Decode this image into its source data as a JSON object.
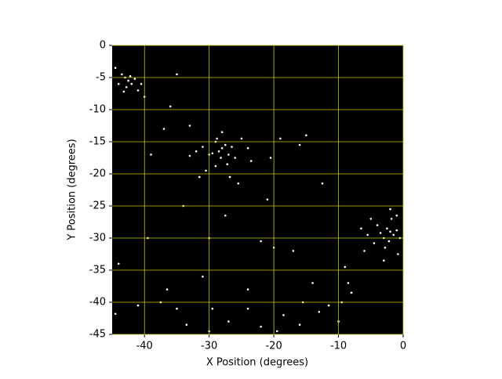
{
  "chart_data": {
    "type": "scatter",
    "x_label": "X Position (degrees)",
    "y_label": "Y Position (degrees)",
    "xlim": [
      -45,
      0
    ],
    "ylim": [
      -45,
      0
    ],
    "xticks": [
      -40,
      -30,
      -20,
      -10,
      0
    ],
    "yticks": [
      0,
      -5,
      -10,
      -15,
      -20,
      -25,
      -30,
      -35,
      -40,
      -45
    ],
    "grid": true,
    "grid_color": "#c8c800",
    "background": "#000000",
    "color": "#ffffff",
    "x": [
      -43,
      -42.5,
      -42,
      -42.8,
      -41.5,
      -43.5,
      -44,
      -41,
      -42.2,
      -43.2,
      -40.5,
      -44.5,
      -28,
      -28.5,
      -27.5,
      -29,
      -27,
      -28.2,
      -29.5,
      -26.5,
      -28.8,
      -27.2,
      -30,
      -26,
      -31,
      -29,
      -25,
      -32,
      -28,
      -24,
      -30.5,
      -26.8,
      -33,
      -23.5,
      -31.5,
      -25.5,
      -2,
      -1.5,
      -2.5,
      -3,
      -1,
      -2.2,
      -3.5,
      -0.5,
      -4,
      -2.8,
      -1.8,
      -4.5,
      -5.5,
      -2,
      -6,
      -3,
      -1,
      -5,
      -0.8,
      -6.5,
      -36,
      -40,
      -35,
      -33,
      -39,
      -37,
      -19,
      -16,
      -15,
      -20.5,
      -12.5,
      -21,
      -34,
      -39.5,
      -44,
      -30,
      -27.5,
      -22,
      -20,
      -17,
      -9,
      -8.5,
      -9.5,
      -8,
      -15.5,
      -13,
      -11.5,
      -16,
      -18.5,
      -22,
      -24,
      -29.5,
      -30,
      -33.5,
      -35,
      -37.5,
      -41,
      -44.5,
      -27,
      -19.5,
      -24,
      -10,
      -14,
      -31,
      -36.5
    ],
    "values": [
      -5,
      -5.5,
      -6,
      -6.5,
      -5.2,
      -4.5,
      -6,
      -7,
      -4.8,
      -7.2,
      -6,
      -3.5,
      -16,
      -16.5,
      -15.5,
      -15,
      -17,
      -17.5,
      -16.8,
      -15.8,
      -14.5,
      -18.5,
      -17,
      -17.5,
      -15.8,
      -18.8,
      -14.5,
      -16.5,
      -13.5,
      -16,
      -19.5,
      -20.5,
      -17.2,
      -18,
      -20.5,
      -21.5,
      -29,
      -29.5,
      -28.5,
      -30,
      -28.8,
      -30.5,
      -29.2,
      -30,
      -28,
      -31.5,
      -27,
      -30.8,
      -29.5,
      -25.5,
      -32,
      -33.5,
      -26.5,
      -27,
      -32.5,
      -28.5,
      -9.5,
      -8,
      -4.5,
      -12.5,
      -17,
      -13,
      -14.5,
      -15.5,
      -14,
      -17.5,
      -21.5,
      -24,
      -25,
      -30,
      -34,
      -30,
      -26.5,
      -30.5,
      -31.5,
      -32,
      -34.5,
      -37,
      -40,
      -38.5,
      -40,
      -41.5,
      -40.5,
      -43.5,
      -42,
      -43.8,
      -41,
      -41,
      -44.5,
      -43.5,
      -41,
      -40,
      -40.5,
      -41.8,
      -43,
      -44.5,
      -38,
      -43,
      -37,
      -36,
      -38
    ]
  }
}
